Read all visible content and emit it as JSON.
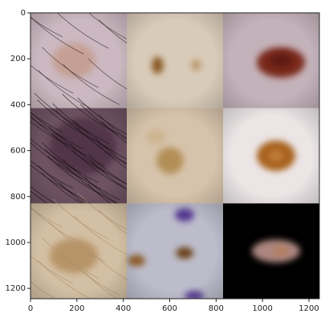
{
  "chart_data": {
    "type": "image",
    "xlim": [
      0,
      1245
    ],
    "ylim": [
      1245,
      0
    ],
    "xticks": [
      0,
      200,
      400,
      600,
      800,
      1000,
      1200
    ],
    "yticks": [
      0,
      200,
      400,
      600,
      800,
      1000,
      1200
    ]
  }
}
